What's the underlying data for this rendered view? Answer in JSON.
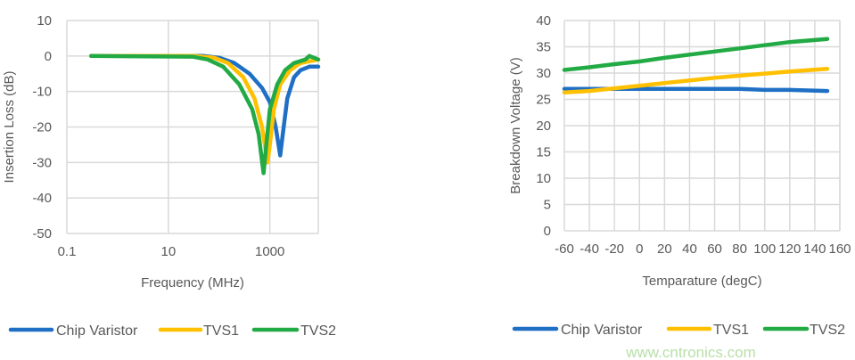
{
  "chart_data": [
    {
      "type": "line",
      "title": "",
      "xlabel": "Frequency (MHz)",
      "ylabel": "Insertion Loss (dB)",
      "xscale": "log",
      "xlim": [
        0.1,
        9000
      ],
      "ylim": [
        -50,
        10
      ],
      "xticks": [
        "0.1",
        "10",
        "1000"
      ],
      "xtick_values": [
        0.1,
        10,
        1000
      ],
      "yticks": [
        "10",
        "0",
        "-10",
        "-20",
        "-30",
        "-40",
        "-50"
      ],
      "ytick_values": [
        10,
        0,
        -10,
        -20,
        -30,
        -40,
        -50
      ],
      "grid": true,
      "legend": "bottom",
      "series": [
        {
          "name": "Chip Varistor",
          "color": "#1F6FC5",
          "x": [
            0.3,
            50,
            100,
            200,
            400,
            700,
            1000,
            1300,
            1600,
            1800,
            2200,
            3000,
            4000,
            6000,
            9000
          ],
          "y": [
            0,
            0,
            -0.5,
            -2,
            -5,
            -9,
            -13,
            -20,
            -28,
            -22,
            -12,
            -6,
            -4,
            -3,
            -3
          ]
        },
        {
          "name": "TVS1",
          "color": "#FFC000",
          "x": [
            0.3,
            30,
            80,
            150,
            300,
            500,
            700,
            900,
            1000,
            1200,
            1600,
            2500,
            4000,
            9000
          ],
          "y": [
            0,
            0,
            -0.5,
            -2,
            -6,
            -12,
            -20,
            -30,
            -25,
            -15,
            -8,
            -4,
            -2,
            -1
          ]
        },
        {
          "name": "TVS2",
          "color": "#22AA44",
          "x": [
            0.3,
            30,
            60,
            120,
            250,
            450,
            600,
            750,
            850,
            1000,
            1400,
            2000,
            3000,
            5000,
            6000,
            9000
          ],
          "y": [
            0,
            -0.2,
            -1,
            -3,
            -8,
            -15,
            -22,
            -33,
            -25,
            -15,
            -8,
            -4,
            -2,
            -1,
            0,
            -1
          ]
        }
      ]
    },
    {
      "type": "line",
      "title": "",
      "xlabel": "Temparature (degC)",
      "ylabel": "Breakdown Voltage (V)",
      "xlim": [
        -60,
        160
      ],
      "ylim": [
        0,
        40
      ],
      "xticks": [
        "-60",
        "-40",
        "-20",
        "0",
        "20",
        "40",
        "60",
        "80",
        "100",
        "120",
        "140",
        "160"
      ],
      "xtick_values": [
        -60,
        -40,
        -20,
        0,
        20,
        40,
        60,
        80,
        100,
        120,
        140,
        160
      ],
      "yticks": [
        "40",
        "35",
        "30",
        "25",
        "20",
        "15",
        "10",
        "5",
        "0"
      ],
      "ytick_values": [
        40,
        35,
        30,
        25,
        20,
        15,
        10,
        5,
        0
      ],
      "grid": true,
      "legend": "bottom",
      "series": [
        {
          "name": "Chip Varistor",
          "color": "#1F6FC5",
          "x": [
            -60,
            -40,
            -20,
            0,
            20,
            40,
            60,
            80,
            100,
            120,
            150
          ],
          "y": [
            27,
            27,
            27,
            27,
            27,
            27,
            27,
            27,
            26.8,
            26.8,
            26.6
          ]
        },
        {
          "name": "TVS1",
          "color": "#FFC000",
          "x": [
            -60,
            -40,
            -20,
            0,
            20,
            40,
            60,
            80,
            100,
            120,
            150
          ],
          "y": [
            26.3,
            26.6,
            27.1,
            27.6,
            28.1,
            28.6,
            29.1,
            29.5,
            29.9,
            30.3,
            30.8
          ]
        },
        {
          "name": "TVS2",
          "color": "#22AA44",
          "x": [
            -60,
            -40,
            -20,
            0,
            20,
            40,
            60,
            80,
            100,
            120,
            150
          ],
          "y": [
            30.6,
            31.1,
            31.7,
            32.2,
            32.9,
            33.5,
            34.1,
            34.7,
            35.3,
            35.9,
            36.5
          ]
        }
      ]
    }
  ],
  "watermark": "www.cntronics.com"
}
